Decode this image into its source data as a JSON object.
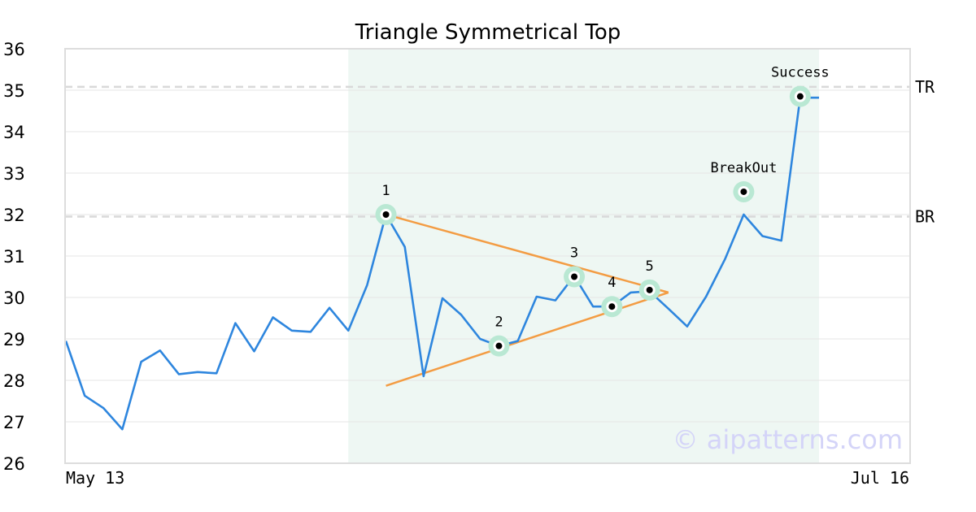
{
  "chart_data": {
    "type": "line",
    "title": "Triangle Symmetrical Top",
    "xlabel": "",
    "ylabel": "",
    "ylim": [
      26,
      36
    ],
    "yticks": [
      26,
      27,
      28,
      29,
      30,
      31,
      32,
      33,
      34,
      35,
      36
    ],
    "x_tick_labels": [
      "May 13",
      "Jul 16"
    ],
    "grid": true,
    "line_color": "#2e86de",
    "series": [
      {
        "values": [
          28.95,
          27.63,
          27.33,
          26.82,
          28.45,
          28.72,
          28.15,
          28.2,
          28.17,
          29.38,
          28.7,
          29.52,
          29.2,
          29.17,
          29.75,
          29.2,
          30.3,
          32.0,
          31.22,
          28.1,
          29.98,
          29.58,
          29.0,
          28.83,
          28.95,
          30.02,
          29.93,
          30.52,
          29.78,
          29.78,
          30.12,
          30.15,
          29.73,
          29.3,
          30.02,
          30.92,
          32.0,
          31.48,
          31.37,
          34.82,
          34.82
        ]
      }
    ],
    "pattern_region": {
      "start_index": 15,
      "end_index": 40,
      "color": "#eef7f3"
    },
    "levels": [
      {
        "label": "TR",
        "value": 35.08
      },
      {
        "label": "BR",
        "value": 31.95
      }
    ],
    "trendlines": [
      {
        "from": [
          17,
          32.0
        ],
        "to": [
          32,
          30.12
        ]
      },
      {
        "from": [
          17,
          27.87
        ],
        "to": [
          32,
          30.12
        ]
      }
    ],
    "trendline_color": "#f39c43",
    "annotations": [
      {
        "label": "1",
        "x": 17,
        "y": 32.0
      },
      {
        "label": "2",
        "x": 23,
        "y": 28.83
      },
      {
        "label": "3",
        "x": 27,
        "y": 30.5
      },
      {
        "label": "4",
        "x": 29,
        "y": 29.78
      },
      {
        "label": "5",
        "x": 31,
        "y": 30.18
      },
      {
        "label": "BreakOut",
        "x": 36,
        "y": 32.55
      },
      {
        "label": "Success",
        "x": 39,
        "y": 34.85
      }
    ],
    "marker_halo_color": "#b9e8d3",
    "watermark": "© aipatterns.com",
    "watermark_color": "#d4d4f8"
  }
}
